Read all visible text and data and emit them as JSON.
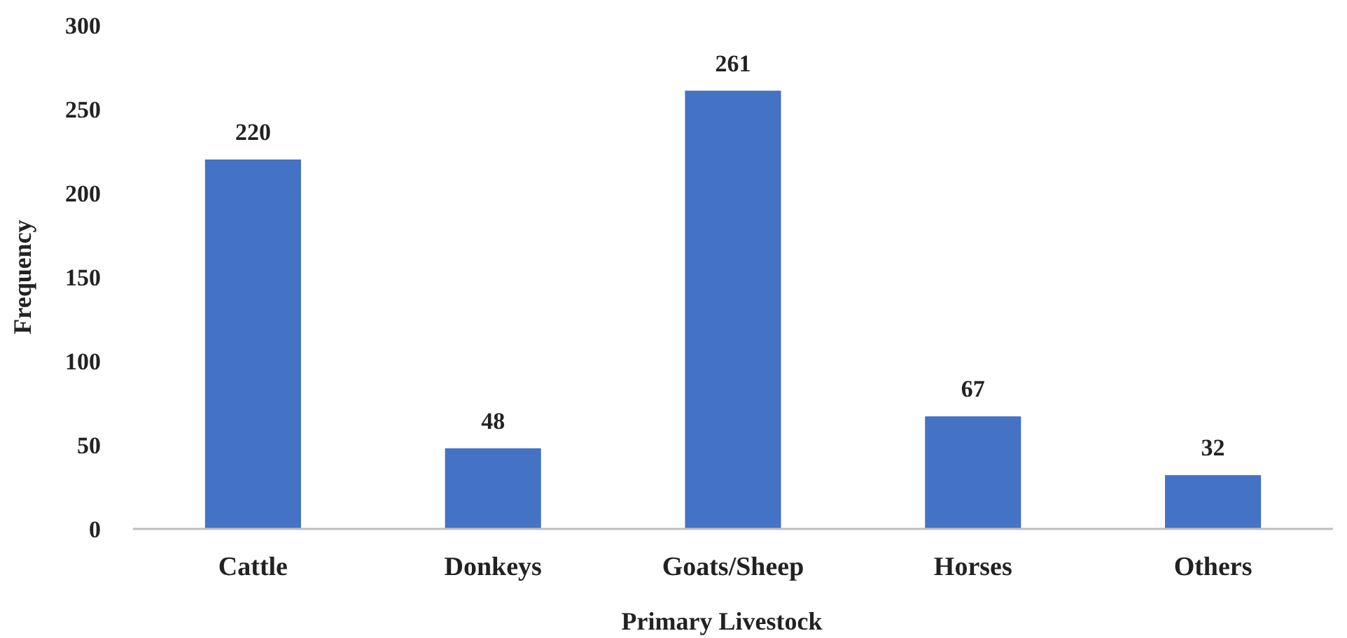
{
  "chart_data": {
    "type": "bar",
    "xlabel": "Primary Livestock",
    "ylabel": "Frequency",
    "categories": [
      "Cattle",
      "Donkeys",
      "Goats/Sheep",
      "Horses",
      "Others"
    ],
    "values": [
      220,
      48,
      261,
      67,
      32
    ],
    "color": "#4472c4",
    "ylim": [
      0,
      300
    ],
    "yticks": [
      0,
      50,
      100,
      150,
      200,
      250,
      300
    ],
    "grid": false,
    "data_labels": true
  }
}
